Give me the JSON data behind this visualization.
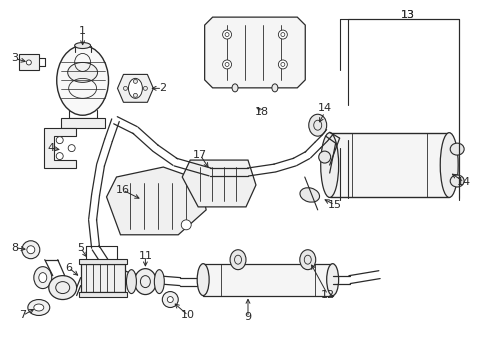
{
  "bg_color": "#ffffff",
  "line_color": "#2a2a2a",
  "label_color": "#111111",
  "figsize": [
    4.9,
    3.6
  ],
  "dpi": 100,
  "xlim": [
    0,
    490
  ],
  "ylim": [
    0,
    360
  ]
}
